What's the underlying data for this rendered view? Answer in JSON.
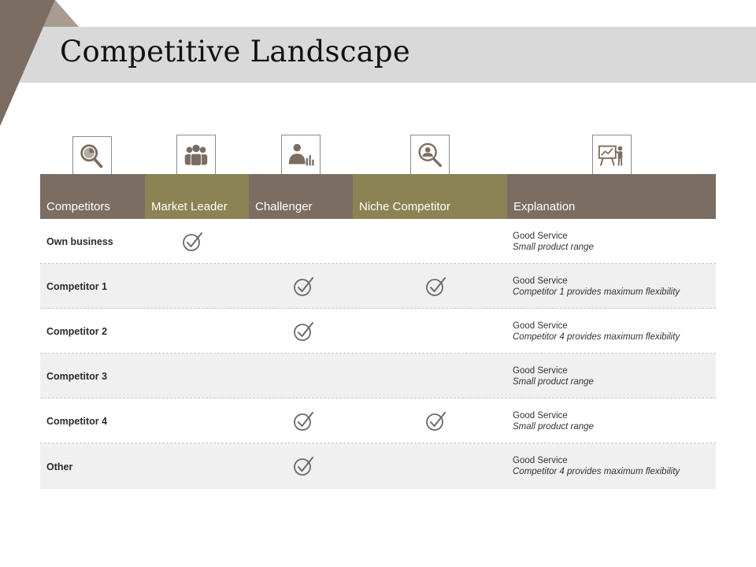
{
  "title": "Competitive Landscape",
  "colors": {
    "brown": "#7b6d62",
    "olive": "#8b8354",
    "title_bar": "#d9d9d9",
    "check": "#6b6b6b"
  },
  "icons": [
    "magnifier-chart-icon",
    "team-icon",
    "presenter-chart-icon",
    "search-person-icon",
    "whiteboard-presenter-icon"
  ],
  "columns": [
    "Competitors",
    "Market Leader",
    "Challenger",
    "Niche Competitor",
    "Explanation"
  ],
  "rows": [
    {
      "label": "Own business",
      "market_leader": true,
      "challenger": false,
      "niche": false,
      "expl1": "Good Service",
      "expl2": "Small product range"
    },
    {
      "label": "Competitor 1",
      "market_leader": false,
      "challenger": true,
      "niche": true,
      "expl1": "Good Service",
      "expl2": "Competitor 1 provides maximum flexibility"
    },
    {
      "label": "Competitor 2",
      "market_leader": false,
      "challenger": true,
      "niche": false,
      "expl1": "Good Service",
      "expl2": "Competitor 4 provides maximum flexibility"
    },
    {
      "label": "Competitor 3",
      "market_leader": false,
      "challenger": false,
      "niche": false,
      "expl1": "Good Service",
      "expl2": "Small product range"
    },
    {
      "label": "Competitor 4",
      "market_leader": false,
      "challenger": true,
      "niche": true,
      "expl1": "Good Service",
      "expl2": "Small product range"
    },
    {
      "label": "Other",
      "market_leader": false,
      "challenger": true,
      "niche": false,
      "expl1": "Good Service",
      "expl2": "Competitor 4 provides maximum flexibility"
    }
  ]
}
